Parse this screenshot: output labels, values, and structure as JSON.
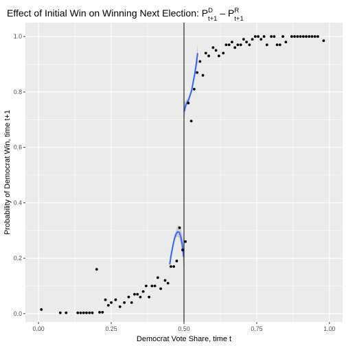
{
  "chart_data": {
    "type": "scatter",
    "title": {
      "text": "Effect of Initial Win on Winning Next Election: ",
      "p": "P",
      "sup_d": "D",
      "sub": "t+1",
      "minus": " – ",
      "sup_r": "R"
    },
    "xlabel": "Democrat Vote Share, time t",
    "ylabel": "Probability of Democrat Win, time t+1",
    "xlim": [
      -0.045,
      1.045
    ],
    "ylim": [
      -0.03,
      1.05
    ],
    "x_ticks": [
      0,
      0.25,
      0.5,
      0.75,
      1
    ],
    "x_tick_labels": [
      "0.00",
      "0.25",
      "0.50",
      "0.75",
      "1.00"
    ],
    "y_ticks": [
      0,
      0.2,
      0.4,
      0.6,
      0.8,
      1
    ],
    "y_tick_labels": [
      "0.0",
      "0.2",
      "0.4",
      "0.6",
      "0.8",
      "1.0"
    ],
    "cutoff": 0.5,
    "grid": true,
    "legend": "none",
    "colors": {
      "panel": "#ebebeb",
      "grid": "#ffffff",
      "points": "#000000",
      "fit": "#3366ff",
      "ribbon": "#999999",
      "cutoff": "#000000"
    },
    "points": {
      "x": [
        0.01,
        0.075,
        0.095,
        0.135,
        0.145,
        0.155,
        0.165,
        0.175,
        0.185,
        0.2,
        0.21,
        0.22,
        0.23,
        0.24,
        0.25,
        0.265,
        0.28,
        0.295,
        0.31,
        0.32,
        0.33,
        0.34,
        0.35,
        0.36,
        0.37,
        0.38,
        0.39,
        0.4,
        0.41,
        0.42,
        0.435,
        0.445,
        0.455,
        0.465,
        0.475,
        0.485,
        0.495,
        0.505,
        0.515,
        0.525,
        0.535,
        0.545,
        0.555,
        0.565,
        0.575,
        0.585,
        0.6,
        0.61,
        0.62,
        0.635,
        0.645,
        0.655,
        0.665,
        0.675,
        0.685,
        0.695,
        0.705,
        0.715,
        0.725,
        0.735,
        0.745,
        0.755,
        0.765,
        0.775,
        0.785,
        0.8,
        0.81,
        0.82,
        0.83,
        0.84,
        0.85,
        0.87,
        0.88,
        0.89,
        0.9,
        0.91,
        0.92,
        0.93,
        0.94,
        0.95,
        0.96,
        0.98
      ],
      "y": [
        0.015,
        0.003,
        0.003,
        0.003,
        0.003,
        0.003,
        0.003,
        0.003,
        0.003,
        0.16,
        0.005,
        0.005,
        0.05,
        0.03,
        0.04,
        0.05,
        0.025,
        0.04,
        0.06,
        0.04,
        0.07,
        0.07,
        0.06,
        0.08,
        0.1,
        0.06,
        0.1,
        0.1,
        0.13,
        0.09,
        0.12,
        0.11,
        0.17,
        0.17,
        0.19,
        0.31,
        0.23,
        0.26,
        0.76,
        0.695,
        0.81,
        0.87,
        0.91,
        0.86,
        0.94,
        0.93,
        0.96,
        0.95,
        0.93,
        0.94,
        0.97,
        0.97,
        0.98,
        0.96,
        0.97,
        0.97,
        0.99,
        0.98,
        0.97,
        0.99,
        1.0,
        1.0,
        0.99,
        1.0,
        0.97,
        1.0,
        1.0,
        0.97,
        0.97,
        1.0,
        0.98,
        1.0,
        1.0,
        1.0,
        1.0,
        1.0,
        1.0,
        1.0,
        1.0,
        1.0,
        1.0,
        0.985
      ]
    },
    "fit_left": {
      "x": [
        0.451,
        0.456,
        0.462,
        0.467,
        0.473,
        0.478,
        0.484,
        0.489,
        0.494,
        0.499
      ],
      "y": [
        0.178,
        0.212,
        0.245,
        0.27,
        0.288,
        0.295,
        0.293,
        0.278,
        0.25,
        0.205
      ],
      "ymin": [
        0.155,
        0.196,
        0.232,
        0.258,
        0.275,
        0.278,
        0.272,
        0.252,
        0.215,
        0.16
      ],
      "ymax": [
        0.2,
        0.228,
        0.258,
        0.282,
        0.302,
        0.318,
        0.318,
        0.306,
        0.286,
        0.252
      ]
    },
    "fit_right": {
      "x": [
        0.501,
        0.506,
        0.511,
        0.516,
        0.521,
        0.527,
        0.532,
        0.537,
        0.542,
        0.547
      ],
      "y": [
        0.73,
        0.752,
        0.762,
        0.772,
        0.788,
        0.808,
        0.838,
        0.865,
        0.9,
        0.94
      ],
      "ymin": [
        0.7,
        0.738,
        0.752,
        0.763,
        0.778,
        0.797,
        0.825,
        0.85,
        0.878,
        0.905
      ],
      "ymax": [
        0.765,
        0.768,
        0.773,
        0.782,
        0.798,
        0.82,
        0.852,
        0.88,
        0.922,
        0.975
      ]
    }
  }
}
